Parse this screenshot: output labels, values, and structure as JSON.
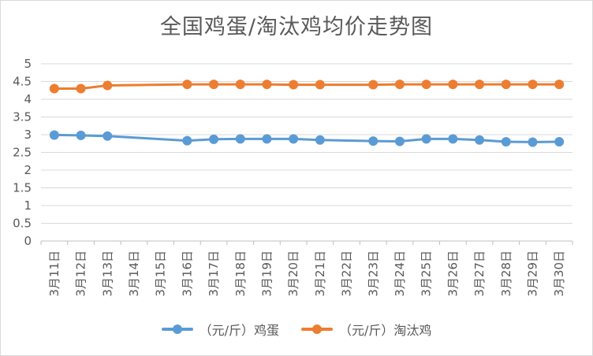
{
  "chart_data": {
    "type": "line",
    "title": "全国鸡蛋/淘汰鸡均价走势图",
    "xlabel": "",
    "ylabel": "",
    "ylim": [
      0,
      5
    ],
    "yticks": [
      "0",
      "0.5",
      "1",
      "1.5",
      "2",
      "2.5",
      "3",
      "3.5",
      "4",
      "4.5",
      "5"
    ],
    "grid": true,
    "legend_position": "bottom",
    "categories": [
      "3月11日",
      "3月12日",
      "3月13日",
      "3月14日",
      "3月15日",
      "3月16日",
      "3月17日",
      "3月18日",
      "3月19日",
      "3月20日",
      "3月21日",
      "3月22日",
      "3月23日",
      "3月24日",
      "3月25日",
      "3月26日",
      "3月27日",
      "3月28日",
      "3月29日",
      "3月30日"
    ],
    "series": [
      {
        "name": "（元/斤）鸡蛋",
        "color": "#5b9bd5",
        "values": [
          2.99,
          2.98,
          2.96,
          null,
          null,
          2.83,
          2.87,
          2.88,
          2.88,
          2.88,
          2.85,
          null,
          2.82,
          2.81,
          2.88,
          2.88,
          2.85,
          2.8,
          2.79,
          2.8
        ]
      },
      {
        "name": "（元/斤）淘汰鸡",
        "color": "#ed7d31",
        "values": [
          4.3,
          4.3,
          4.39,
          null,
          null,
          4.42,
          4.42,
          4.42,
          4.42,
          4.41,
          4.41,
          null,
          4.41,
          4.42,
          4.42,
          4.42,
          4.42,
          4.42,
          4.42,
          4.42
        ]
      }
    ]
  }
}
